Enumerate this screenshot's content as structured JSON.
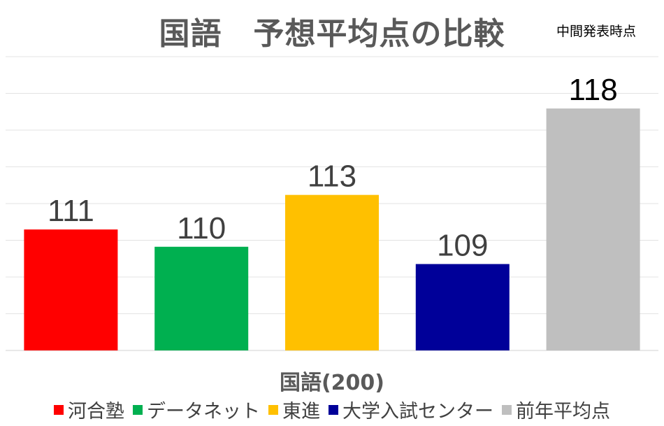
{
  "title": "国語　予想平均点の比較",
  "subtitle": "中間発表時点",
  "chart_data": {
    "type": "bar",
    "categories": [
      "河合塾",
      "データネット",
      "東進",
      "大学入試センター",
      "前年平均点"
    ],
    "values": [
      111,
      110,
      113,
      109,
      118
    ],
    "colors": [
      "#ff0000",
      "#00b050",
      "#ffc000",
      "#000099",
      "#bfbfbf"
    ],
    "data_labels": [
      "111",
      "110",
      "113",
      "109",
      "118"
    ],
    "xlabel": "国語(200)",
    "ylabel": "",
    "ylim": [
      104,
      121
    ],
    "grid": true,
    "legend_position": "bottom"
  }
}
